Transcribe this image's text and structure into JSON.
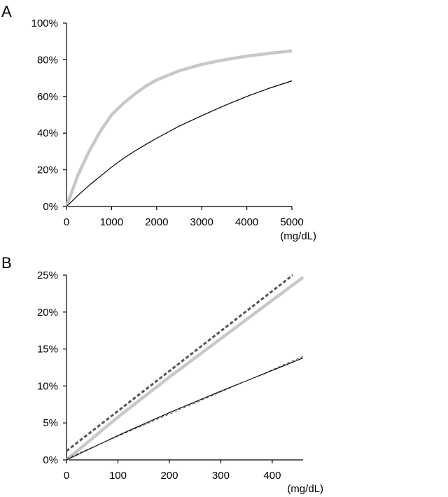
{
  "chart_data": [
    {
      "panel": "A",
      "type": "line",
      "xlabel": "(mg/dL)",
      "ylabel": "",
      "xlim": [
        0,
        5000
      ],
      "ylim": [
        0,
        1
      ],
      "xticks": [
        0,
        1000,
        2000,
        3000,
        4000,
        5000
      ],
      "xtick_labels": [
        "0",
        "1000",
        "2000",
        "3000",
        "4000",
        "5000"
      ],
      "yticks": [
        0,
        0.2,
        0.4,
        0.6,
        0.8,
        1.0
      ],
      "ytick_labels": [
        "0%",
        "20%",
        "40%",
        "60%",
        "80%",
        "100%"
      ],
      "grid": false,
      "series": [
        {
          "color": "#c8c8c8",
          "style": "solid-thick",
          "x": [
            0,
            250,
            500,
            750,
            1000,
            1250,
            1500,
            1750,
            2000,
            2500,
            3000,
            3500,
            4000,
            4500,
            5000
          ],
          "y": [
            0,
            0.17,
            0.3,
            0.41,
            0.5,
            0.56,
            0.61,
            0.655,
            0.69,
            0.74,
            0.775,
            0.8,
            0.82,
            0.835,
            0.848
          ]
        },
        {
          "color": "#000000",
          "style": "solid-thin",
          "x": [
            0,
            250,
            500,
            750,
            1000,
            1250,
            1500,
            1750,
            2000,
            2500,
            3000,
            3500,
            4000,
            4500,
            5000
          ],
          "y": [
            0,
            0.06,
            0.115,
            0.165,
            0.215,
            0.26,
            0.3,
            0.337,
            0.372,
            0.438,
            0.495,
            0.55,
            0.6,
            0.645,
            0.685
          ]
        }
      ]
    },
    {
      "panel": "B",
      "type": "line",
      "xlabel": "(mg/dL)",
      "ylabel": "",
      "xlim": [
        0,
        460
      ],
      "ylim": [
        0,
        0.25
      ],
      "xticks": [
        0,
        100,
        200,
        300,
        400
      ],
      "xtick_labels": [
        "0",
        "100",
        "200",
        "300",
        "400"
      ],
      "yticks": [
        0,
        0.05,
        0.1,
        0.15,
        0.2,
        0.25
      ],
      "ytick_labels": [
        "0%",
        "5%",
        "10%",
        "15%",
        "20%",
        "25%"
      ],
      "grid": false,
      "series": [
        {
          "color": "#c8c8c8",
          "style": "solid-thick",
          "x": [
            0,
            100,
            200,
            300,
            400,
            460
          ],
          "y": [
            0,
            0.058,
            0.112,
            0.164,
            0.216,
            0.247
          ]
        },
        {
          "color": "#555555",
          "style": "dashed-thick",
          "x": [
            0,
            440
          ],
          "y": [
            0.012,
            0.25
          ]
        },
        {
          "color": "#000000",
          "style": "solid-thin",
          "x": [
            0,
            100,
            200,
            300,
            400,
            460
          ],
          "y": [
            0,
            0.033,
            0.064,
            0.093,
            0.121,
            0.138
          ]
        },
        {
          "color": "#555555",
          "style": "dashed-thin",
          "x": [
            0,
            460
          ],
          "y": [
            0.002,
            0.14
          ]
        }
      ]
    }
  ]
}
